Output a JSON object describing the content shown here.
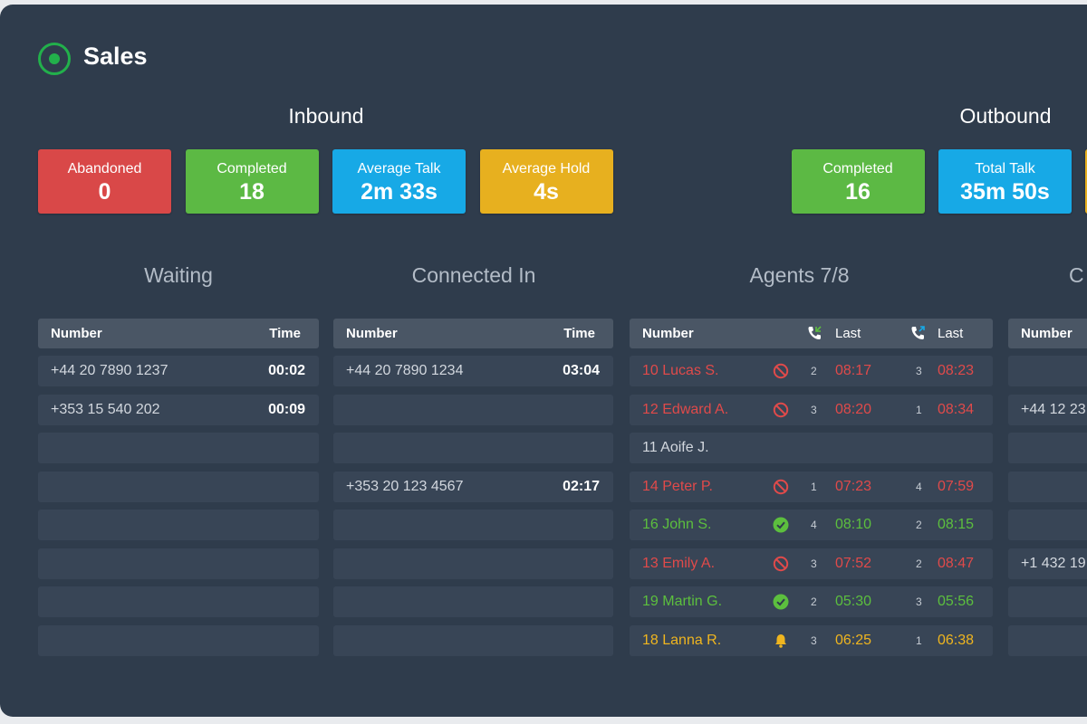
{
  "header": {
    "title": "Sales"
  },
  "inbound": {
    "title": "Inbound",
    "stats": [
      {
        "label": "Abandoned",
        "value": "0",
        "color": "#d94848"
      },
      {
        "label": "Completed",
        "value": "18",
        "color": "#5cb944"
      },
      {
        "label": "Average Talk",
        "value": "2m 33s",
        "color": "#17a9e6"
      },
      {
        "label": "Average Hold",
        "value": "4s",
        "color": "#e7b01f"
      }
    ]
  },
  "outbound": {
    "title": "Outbound",
    "stats": [
      {
        "label": "Completed",
        "value": "16",
        "color": "#5cb944"
      },
      {
        "label": "Total Talk",
        "value": "35m 50s",
        "color": "#17a9e6"
      }
    ],
    "partial_card_color": "#e7b01f"
  },
  "waiting": {
    "title": "Waiting",
    "col_number": "Number",
    "col_time": "Time",
    "rows": [
      {
        "number": "+44 20 7890 1237",
        "time": "00:02"
      },
      {
        "number": "+353 15 540 202",
        "time": "00:09"
      }
    ]
  },
  "connected_in": {
    "title": "Connected In",
    "col_number": "Number",
    "col_time": "Time",
    "rows": [
      {
        "number": "+44 20 7890 1234",
        "time": "03:04"
      },
      {
        "number": "",
        "time": ""
      },
      {
        "number": "",
        "time": ""
      },
      {
        "number": "+353 20 123 4567",
        "time": "02:17"
      }
    ]
  },
  "agents": {
    "title": "Agents 7/8",
    "col_number": "Number",
    "col_last_in": "Last",
    "col_last_out": "Last",
    "rows": [
      {
        "name": "10 Lucas S.",
        "status": "busy",
        "in_count": "2",
        "in_last": "08:17",
        "out_count": "3",
        "out_last": "08:23"
      },
      {
        "name": "12 Edward A.",
        "status": "busy",
        "in_count": "3",
        "in_last": "08:20",
        "out_count": "1",
        "out_last": "08:34"
      },
      {
        "name": "11 Aoife J.",
        "status": "none",
        "in_count": "",
        "in_last": "",
        "out_count": "",
        "out_last": ""
      },
      {
        "name": "14 Peter P.",
        "status": "busy",
        "in_count": "1",
        "in_last": "07:23",
        "out_count": "4",
        "out_last": "07:59"
      },
      {
        "name": "16 John S.",
        "status": "available",
        "in_count": "4",
        "in_last": "08:10",
        "out_count": "2",
        "out_last": "08:15"
      },
      {
        "name": "13 Emily A.",
        "status": "busy",
        "in_count": "3",
        "in_last": "07:52",
        "out_count": "2",
        "out_last": "08:47"
      },
      {
        "name": "19 Martin G.",
        "status": "available",
        "in_count": "2",
        "in_last": "05:30",
        "out_count": "3",
        "out_last": "05:56"
      },
      {
        "name": "18 Lanna R.",
        "status": "ringing",
        "in_count": "3",
        "in_last": "06:25",
        "out_count": "1",
        "out_last": "06:38"
      }
    ]
  },
  "connected_out": {
    "title_partial": "C",
    "col_number": "Number",
    "rows": [
      {
        "number": ""
      },
      {
        "number": "+44 12 23"
      },
      {
        "number": ""
      },
      {
        "number": ""
      },
      {
        "number": ""
      },
      {
        "number": "+1 432 19"
      },
      {
        "number": ""
      },
      {
        "number": ""
      }
    ]
  },
  "colors": {
    "background": "#2f3c4c",
    "row": "#384556",
    "header_row": "#4a5665",
    "busy": "#e04a4a",
    "available": "#5cbf3e",
    "ringing": "#efb51f",
    "brand": "#22b04b"
  },
  "icons": {
    "header": "radio-target-icon",
    "busy": "prohibited-icon",
    "available": "check-circle-icon",
    "ringing": "bell-icon",
    "inbound_call": "phone-incoming-icon",
    "outbound_call": "phone-outgoing-icon"
  }
}
